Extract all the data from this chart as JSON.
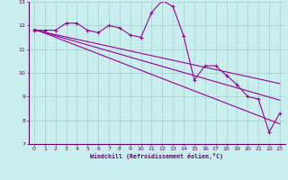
{
  "xlabel": "Windchill (Refroidissement éolien,°C)",
  "background_color": "#c8eeee",
  "grid_color": "#aacccc",
  "line_color": "#990099",
  "x_range": [
    -0.5,
    23.5
  ],
  "y_range": [
    7,
    13
  ],
  "x_ticks": [
    0,
    1,
    2,
    3,
    4,
    5,
    6,
    7,
    8,
    9,
    10,
    11,
    12,
    13,
    14,
    15,
    16,
    17,
    18,
    19,
    20,
    21,
    22,
    23
  ],
  "y_ticks": [
    7,
    8,
    9,
    10,
    11,
    12,
    13
  ],
  "series1": [
    11.8,
    11.8,
    11.8,
    12.1,
    12.1,
    11.8,
    11.7,
    12.0,
    11.9,
    11.6,
    11.5,
    12.55,
    13.05,
    12.8,
    11.55,
    9.7,
    10.3,
    10.3,
    9.9,
    9.5,
    9.0,
    8.9,
    7.5,
    8.3
  ],
  "series2_x": [
    0,
    23
  ],
  "series2_y": [
    11.85,
    7.85
  ],
  "series3_x": [
    0,
    23
  ],
  "series3_y": [
    11.83,
    8.85
  ],
  "series4_x": [
    0,
    23
  ],
  "series4_y": [
    11.81,
    9.55
  ]
}
